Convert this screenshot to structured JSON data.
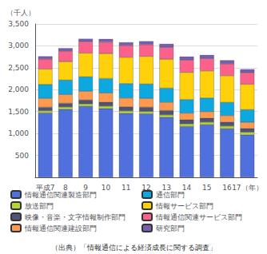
{
  "chart_data": {
    "type": "bar",
    "stacked": true,
    "grid": true,
    "ylabel": "（千人）",
    "annotations": [
      "（出典）「情報通信による経済成長に関する調査」"
    ],
    "categories": [
      "平成7",
      "8",
      "9",
      "10",
      "11",
      "12",
      "13",
      "14",
      "15",
      "16",
      "17（年）"
    ],
    "series": [
      {
        "name": "情報通信関連製造部門",
        "values": [
          1470,
          1550,
          1620,
          1570,
          1460,
          1450,
          1370,
          1160,
          1200,
          1110,
          970
        ]
      },
      {
        "name": "放送部門",
        "values": [
          50,
          55,
          55,
          55,
          55,
          55,
          55,
          60,
          60,
          60,
          60
        ]
      },
      {
        "name": "映像・音楽・文字情報制作部門",
        "values": [
          80,
          85,
          90,
          90,
          95,
          95,
          100,
          95,
          90,
          90,
          85
        ]
      },
      {
        "name": "情報通信関連建設部門",
        "values": [
          200,
          200,
          200,
          210,
          200,
          200,
          190,
          150,
          150,
          150,
          140
        ]
      },
      {
        "name": "通信部門",
        "values": [
          320,
          330,
          330,
          330,
          330,
          330,
          320,
          310,
          310,
          300,
          290
        ]
      },
      {
        "name": "情報サービス部門",
        "values": [
          350,
          420,
          540,
          570,
          600,
          630,
          660,
          620,
          620,
          610,
          580
        ]
      },
      {
        "name": "情報通信関連サービス部門",
        "values": [
          230,
          240,
          260,
          260,
          270,
          270,
          270,
          280,
          280,
          270,
          260
        ]
      },
      {
        "name": "研究部門",
        "values": [
          60,
          65,
          65,
          70,
          70,
          75,
          80,
          80,
          80,
          80,
          80
        ]
      }
    ],
    "ylim": [
      0,
      3500
    ],
    "yticks": [
      {
        "value": 0,
        "label": null
      },
      500,
      {
        "value": 1000,
        "label": "1,000"
      },
      {
        "value": 1500,
        "label": "1,500"
      },
      {
        "value": 2000,
        "label": "2,000"
      },
      {
        "value": 2500,
        "label": "2,500"
      },
      {
        "value": 3000,
        "label": "3,000"
      },
      {
        "value": 3500,
        "label": "3,500"
      }
    ]
  }
}
